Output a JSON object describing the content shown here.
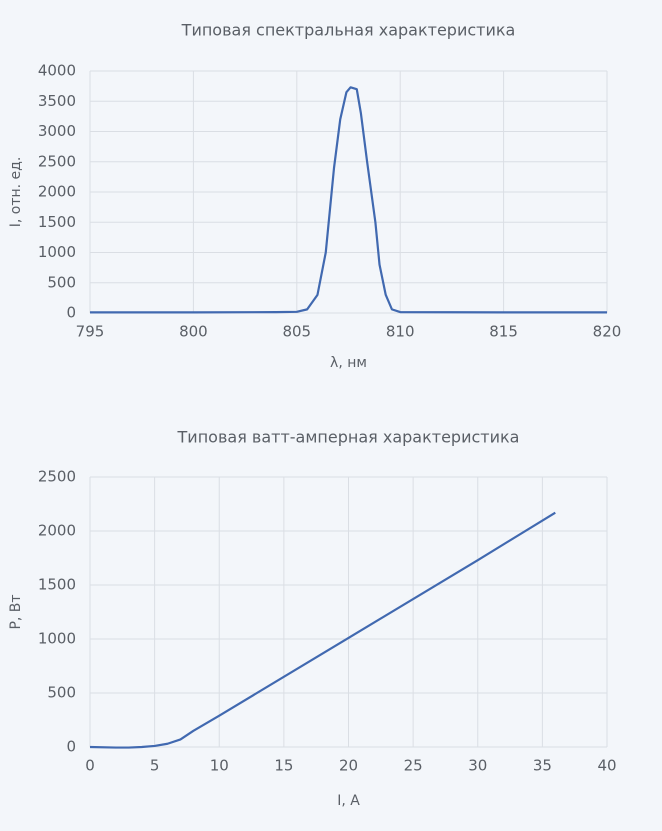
{
  "chart_data": [
    {
      "type": "line",
      "title": "Типовая спектральная характеристика",
      "x_label": "λ, нм",
      "y_label": "I, отн. ед.",
      "x": [
        795,
        800,
        804,
        805,
        805.5,
        806,
        806.4,
        806.8,
        807.1,
        807.4,
        807.6,
        807.9,
        808.1,
        808.4,
        808.8,
        809,
        809.3,
        809.6,
        810,
        815,
        820
      ],
      "series": [
        {
          "color": "#4169b0",
          "values": [
            10,
            10,
            15,
            20,
            60,
            300,
            1000,
            2400,
            3200,
            3650,
            3730,
            3700,
            3300,
            2500,
            1500,
            800,
            300,
            60,
            15,
            10,
            10
          ]
        }
      ],
      "xlim": [
        795,
        820
      ],
      "xticks": [
        795,
        800,
        805,
        810,
        815,
        820
      ],
      "ylim": [
        0,
        4000
      ],
      "yticks": [
        0,
        500,
        1000,
        1500,
        2000,
        2500,
        3000,
        3500,
        4000
      ],
      "grid": true
    },
    {
      "type": "line",
      "title": "Типовая ватт-амперная характеристика",
      "x_label": "I, A",
      "y_label": "P, Вт",
      "x": [
        0,
        2,
        3,
        4,
        5,
        6,
        7,
        8,
        10,
        20,
        30,
        36
      ],
      "series": [
        {
          "color": "#4169b0",
          "values": [
            0,
            -5,
            -5,
            0,
            10,
            30,
            70,
            150,
            290,
            1010,
            1730,
            2170
          ]
        }
      ],
      "xlim": [
        0,
        40
      ],
      "xticks": [
        0,
        5,
        10,
        15,
        20,
        25,
        30,
        35,
        40
      ],
      "ylim": [
        0,
        2500
      ],
      "yticks": [
        0,
        500,
        1000,
        1500,
        2000,
        2500
      ],
      "grid": true
    }
  ]
}
